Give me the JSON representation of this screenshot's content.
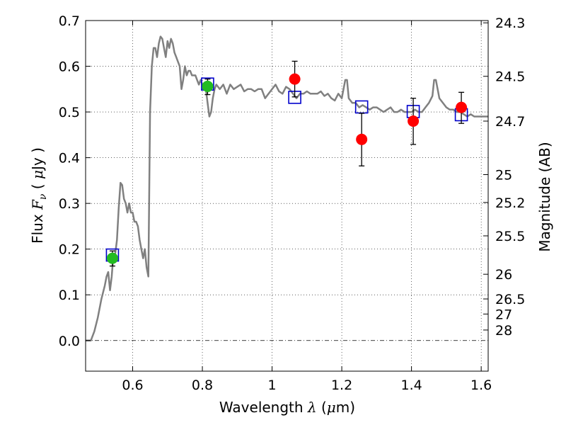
{
  "chart_data": {
    "type": "scatter",
    "title": "",
    "xlabel": {
      "prefix": "Wavelength  ",
      "symbol": "λ",
      "unit_open": " (",
      "unit_mu": "μ",
      "unit_rest": "m)"
    },
    "ylabel": {
      "prefix": "Flux  ",
      "symbol": "F",
      "subscript": "ν",
      "unit_open": "  ( ",
      "unit_mu": "μ",
      "unit_rest": "Jy )"
    },
    "y2label": "Magnitude (AB)",
    "xlim": [
      0.465,
      1.62
    ],
    "ylim": [
      -0.067,
      0.7
    ],
    "grid": true,
    "x_ticks": [
      {
        "value": 0.6,
        "label": "0.6"
      },
      {
        "value": 0.8,
        "label": "0.8"
      },
      {
        "value": 1.0,
        "label": "1"
      },
      {
        "value": 1.2,
        "label": "1.2"
      },
      {
        "value": 1.4,
        "label": "1.4"
      },
      {
        "value": 1.6,
        "label": "1.6"
      }
    ],
    "y_ticks": [
      {
        "value": 0.0,
        "label": "0.0"
      },
      {
        "value": 0.1,
        "label": "0.1"
      },
      {
        "value": 0.2,
        "label": "0.2"
      },
      {
        "value": 0.3,
        "label": "0.3"
      },
      {
        "value": 0.4,
        "label": "0.4"
      },
      {
        "value": 0.5,
        "label": "0.5"
      },
      {
        "value": 0.6,
        "label": "0.6"
      },
      {
        "value": 0.7,
        "label": "0.7"
      }
    ],
    "magnitude_ticks": [
      {
        "flux": 0.695,
        "label": "24.3"
      },
      {
        "flux": 0.578,
        "label": "24.5"
      },
      {
        "flux": 0.48,
        "label": "24.7"
      },
      {
        "flux": 0.363,
        "label": "25"
      },
      {
        "flux": 0.302,
        "label": "25.2"
      },
      {
        "flux": 0.229,
        "label": "25.5"
      },
      {
        "flux": 0.145,
        "label": "26"
      },
      {
        "flux": 0.091,
        "label": "26.5"
      },
      {
        "flux": 0.058,
        "label": "27"
      },
      {
        "flux": 0.023,
        "label": "28"
      }
    ],
    "series": [
      {
        "name": "model spectrum",
        "kind": "line",
        "color": "#808080",
        "points": [
          [
            0.465,
            0.0
          ],
          [
            0.48,
            0.0
          ],
          [
            0.49,
            0.02
          ],
          [
            0.5,
            0.05
          ],
          [
            0.51,
            0.09
          ],
          [
            0.52,
            0.12
          ],
          [
            0.525,
            0.14
          ],
          [
            0.53,
            0.15
          ],
          [
            0.535,
            0.11
          ],
          [
            0.54,
            0.14
          ],
          [
            0.545,
            0.19
          ],
          [
            0.55,
            0.19
          ],
          [
            0.555,
            0.22
          ],
          [
            0.56,
            0.29
          ],
          [
            0.565,
            0.345
          ],
          [
            0.57,
            0.34
          ],
          [
            0.575,
            0.31
          ],
          [
            0.58,
            0.3
          ],
          [
            0.585,
            0.28
          ],
          [
            0.59,
            0.3
          ],
          [
            0.595,
            0.28
          ],
          [
            0.6,
            0.28
          ],
          [
            0.605,
            0.26
          ],
          [
            0.61,
            0.26
          ],
          [
            0.615,
            0.25
          ],
          [
            0.62,
            0.22
          ],
          [
            0.625,
            0.2
          ],
          [
            0.63,
            0.18
          ],
          [
            0.635,
            0.2
          ],
          [
            0.64,
            0.16
          ],
          [
            0.645,
            0.14
          ],
          [
            0.65,
            0.5
          ],
          [
            0.655,
            0.6
          ],
          [
            0.66,
            0.64
          ],
          [
            0.665,
            0.64
          ],
          [
            0.67,
            0.62
          ],
          [
            0.675,
            0.65
          ],
          [
            0.68,
            0.665
          ],
          [
            0.685,
            0.66
          ],
          [
            0.69,
            0.64
          ],
          [
            0.695,
            0.62
          ],
          [
            0.7,
            0.655
          ],
          [
            0.705,
            0.64
          ],
          [
            0.71,
            0.66
          ],
          [
            0.715,
            0.65
          ],
          [
            0.72,
            0.63
          ],
          [
            0.725,
            0.62
          ],
          [
            0.73,
            0.61
          ],
          [
            0.735,
            0.6
          ],
          [
            0.74,
            0.55
          ],
          [
            0.745,
            0.57
          ],
          [
            0.75,
            0.6
          ],
          [
            0.755,
            0.58
          ],
          [
            0.76,
            0.59
          ],
          [
            0.765,
            0.59
          ],
          [
            0.77,
            0.58
          ],
          [
            0.775,
            0.58
          ],
          [
            0.78,
            0.58
          ],
          [
            0.785,
            0.57
          ],
          [
            0.79,
            0.56
          ],
          [
            0.795,
            0.57
          ],
          [
            0.8,
            0.56
          ],
          [
            0.805,
            0.55
          ],
          [
            0.81,
            0.55
          ],
          [
            0.815,
            0.52
          ],
          [
            0.82,
            0.49
          ],
          [
            0.825,
            0.5
          ],
          [
            0.83,
            0.53
          ],
          [
            0.835,
            0.55
          ],
          [
            0.84,
            0.56
          ],
          [
            0.85,
            0.55
          ],
          [
            0.86,
            0.56
          ],
          [
            0.87,
            0.54
          ],
          [
            0.88,
            0.56
          ],
          [
            0.89,
            0.55
          ],
          [
            0.9,
            0.555
          ],
          [
            0.91,
            0.56
          ],
          [
            0.92,
            0.545
          ],
          [
            0.93,
            0.55
          ],
          [
            0.94,
            0.55
          ],
          [
            0.95,
            0.545
          ],
          [
            0.96,
            0.55
          ],
          [
            0.97,
            0.55
          ],
          [
            0.98,
            0.53
          ],
          [
            0.99,
            0.54
          ],
          [
            1.0,
            0.55
          ],
          [
            1.01,
            0.56
          ],
          [
            1.02,
            0.545
          ],
          [
            1.03,
            0.54
          ],
          [
            1.04,
            0.555
          ],
          [
            1.05,
            0.55
          ],
          [
            1.06,
            0.54
          ],
          [
            1.07,
            0.53
          ],
          [
            1.08,
            0.54
          ],
          [
            1.09,
            0.54
          ],
          [
            1.1,
            0.545
          ],
          [
            1.11,
            0.54
          ],
          [
            1.12,
            0.54
          ],
          [
            1.13,
            0.54
          ],
          [
            1.14,
            0.545
          ],
          [
            1.15,
            0.535
          ],
          [
            1.16,
            0.54
          ],
          [
            1.17,
            0.53
          ],
          [
            1.18,
            0.525
          ],
          [
            1.19,
            0.54
          ],
          [
            1.2,
            0.53
          ],
          [
            1.21,
            0.57
          ],
          [
            1.215,
            0.57
          ],
          [
            1.22,
            0.53
          ],
          [
            1.23,
            0.52
          ],
          [
            1.24,
            0.52
          ],
          [
            1.25,
            0.51
          ],
          [
            1.26,
            0.515
          ],
          [
            1.27,
            0.51
          ],
          [
            1.28,
            0.505
          ],
          [
            1.29,
            0.51
          ],
          [
            1.3,
            0.51
          ],
          [
            1.31,
            0.505
          ],
          [
            1.32,
            0.5
          ],
          [
            1.33,
            0.505
          ],
          [
            1.34,
            0.51
          ],
          [
            1.35,
            0.5
          ],
          [
            1.36,
            0.5
          ],
          [
            1.37,
            0.505
          ],
          [
            1.38,
            0.5
          ],
          [
            1.39,
            0.5
          ],
          [
            1.4,
            0.5
          ],
          [
            1.41,
            0.505
          ],
          [
            1.42,
            0.5
          ],
          [
            1.43,
            0.5
          ],
          [
            1.44,
            0.51
          ],
          [
            1.45,
            0.52
          ],
          [
            1.46,
            0.535
          ],
          [
            1.465,
            0.57
          ],
          [
            1.47,
            0.57
          ],
          [
            1.48,
            0.53
          ],
          [
            1.49,
            0.52
          ],
          [
            1.5,
            0.51
          ],
          [
            1.51,
            0.505
          ],
          [
            1.52,
            0.505
          ],
          [
            1.53,
            0.5
          ],
          [
            1.54,
            0.5
          ],
          [
            1.55,
            0.495
          ],
          [
            1.56,
            0.49
          ],
          [
            1.57,
            0.495
          ],
          [
            1.58,
            0.49
          ],
          [
            1.59,
            0.49
          ],
          [
            1.6,
            0.49
          ],
          [
            1.62,
            0.49
          ]
        ]
      },
      {
        "name": "model photometry",
        "kind": "open-square",
        "color": "#0000cc",
        "points": [
          [
            0.542,
            0.187
          ],
          [
            0.815,
            0.561
          ],
          [
            1.065,
            0.532
          ],
          [
            1.257,
            0.511
          ],
          [
            1.405,
            0.501
          ],
          [
            1.543,
            0.494
          ]
        ]
      },
      {
        "name": "observed (green)",
        "kind": "filled-circle",
        "color": "#22bb22",
        "points": [
          {
            "x": 0.542,
            "y": 0.18,
            "ylo": 0.163,
            "yhi": 0.196
          },
          {
            "x": 0.815,
            "y": 0.556,
            "ylo": 0.538,
            "yhi": 0.572
          }
        ]
      },
      {
        "name": "observed (red)",
        "kind": "filled-circle",
        "color": "#ff0000",
        "points": [
          {
            "x": 1.065,
            "y": 0.572,
            "ylo": 0.533,
            "yhi": 0.611
          },
          {
            "x": 1.257,
            "y": 0.44,
            "ylo": 0.382,
            "yhi": 0.497
          },
          {
            "x": 1.405,
            "y": 0.48,
            "ylo": 0.429,
            "yhi": 0.53
          },
          {
            "x": 1.543,
            "y": 0.51,
            "ylo": 0.475,
            "yhi": 0.543
          }
        ]
      }
    ]
  }
}
